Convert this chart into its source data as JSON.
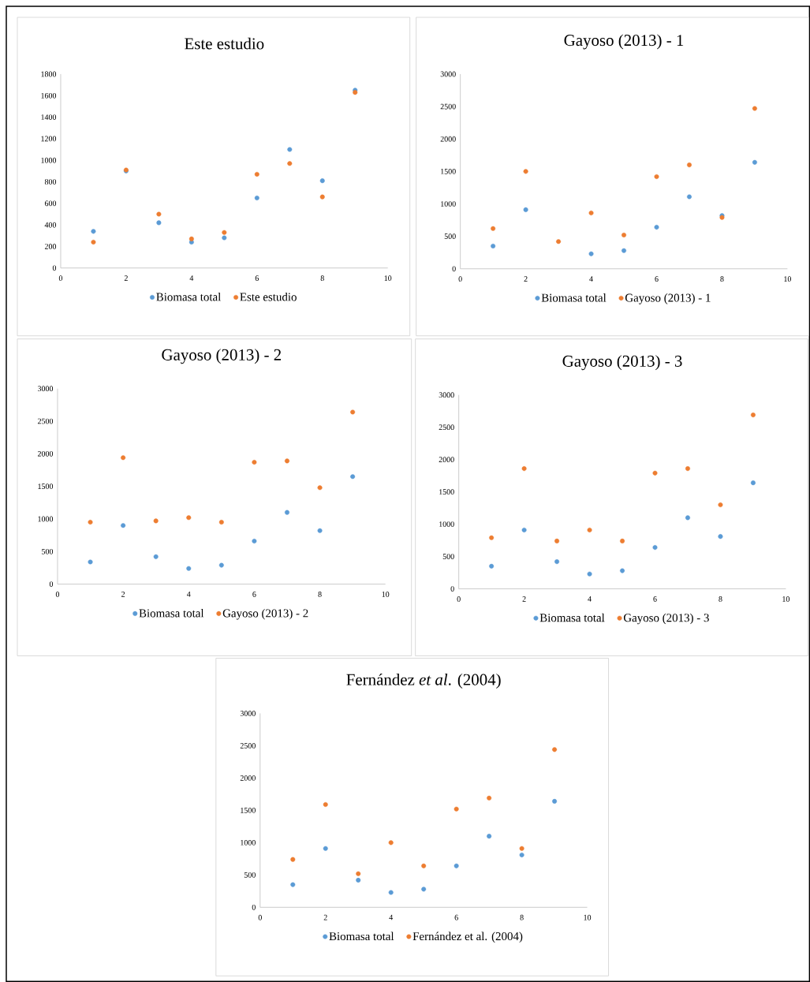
{
  "chart_data": [
    {
      "type": "scatter",
      "title": "Este estudio",
      "x": [
        1,
        2,
        3,
        4,
        5,
        6,
        7,
        8,
        9
      ],
      "xlim": [
        0,
        10
      ],
      "xticks": [
        0,
        2,
        4,
        6,
        8,
        10
      ],
      "ylim": [
        0,
        1800
      ],
      "yticks": [
        0,
        200,
        400,
        600,
        800,
        1000,
        1200,
        1400,
        1600,
        1800
      ],
      "legend": "bottom",
      "marker": "circle",
      "series": [
        {
          "name": "Biomasa total",
          "color": "#5b9bd5",
          "values": [
            340,
            900,
            420,
            240,
            280,
            650,
            1100,
            810,
            1650
          ]
        },
        {
          "name": "Este estudio",
          "color": "#ed7d31",
          "values": [
            240,
            910,
            500,
            270,
            330,
            870,
            970,
            660,
            1630
          ]
        }
      ]
    },
    {
      "type": "scatter",
      "title": "Gayoso (2013) - 1",
      "x": [
        1,
        2,
        3,
        4,
        5,
        6,
        7,
        8,
        9
      ],
      "xlim": [
        0,
        10
      ],
      "xticks": [
        0,
        2,
        4,
        6,
        8,
        10
      ],
      "ylim": [
        0,
        3000
      ],
      "yticks": [
        0,
        500,
        1000,
        1500,
        2000,
        2500,
        3000
      ],
      "legend": "bottom",
      "marker": "circle",
      "series": [
        {
          "name": "Biomasa total",
          "color": "#5b9bd5",
          "values": [
            350,
            910,
            null,
            230,
            280,
            640,
            1110,
            820,
            1640
          ]
        },
        {
          "name": "Gayoso (2013) - 1",
          "color": "#ed7d31",
          "values": [
            620,
            1500,
            420,
            860,
            520,
            1420,
            1600,
            790,
            2470
          ]
        }
      ]
    },
    {
      "type": "scatter",
      "title": "Gayoso (2013) - 2",
      "x": [
        1,
        2,
        3,
        4,
        5,
        6,
        7,
        8,
        9
      ],
      "xlim": [
        0,
        10
      ],
      "xticks": [
        0,
        2,
        4,
        6,
        8,
        10
      ],
      "ylim": [
        0,
        3000
      ],
      "yticks": [
        0,
        500,
        1000,
        1500,
        2000,
        2500,
        3000
      ],
      "legend": "bottom",
      "marker": "circle",
      "series": [
        {
          "name": "Biomasa total",
          "color": "#5b9bd5",
          "values": [
            340,
            900,
            420,
            240,
            290,
            660,
            1100,
            820,
            1650
          ]
        },
        {
          "name": "Gayoso (2013) - 2",
          "color": "#ed7d31",
          "values": [
            950,
            1940,
            970,
            1020,
            950,
            1870,
            1890,
            1480,
            2640
          ]
        }
      ]
    },
    {
      "type": "scatter",
      "title": "Gayoso (2013) - 3",
      "x": [
        1,
        2,
        3,
        4,
        5,
        6,
        7,
        8,
        9
      ],
      "xlim": [
        0,
        10
      ],
      "xticks": [
        0,
        2,
        4,
        6,
        8,
        10
      ],
      "ylim": [
        0,
        3000
      ],
      "yticks": [
        0,
        500,
        1000,
        1500,
        2000,
        2500,
        3000
      ],
      "legend": "bottom",
      "marker": "circle",
      "series": [
        {
          "name": "Biomasa total",
          "color": "#5b9bd5",
          "values": [
            350,
            910,
            420,
            230,
            280,
            640,
            1100,
            810,
            1640
          ]
        },
        {
          "name": "Gayoso (2013) - 3",
          "color": "#ed7d31",
          "values": [
            790,
            1860,
            740,
            910,
            740,
            1790,
            1860,
            1300,
            2690
          ]
        }
      ]
    },
    {
      "type": "scatter",
      "title": "Fernández *et al*. (2004)",
      "x": [
        1,
        2,
        3,
        4,
        5,
        6,
        7,
        8,
        9
      ],
      "xlim": [
        0,
        10
      ],
      "xticks": [
        0,
        2,
        4,
        6,
        8,
        10
      ],
      "ylim": [
        0,
        3000
      ],
      "yticks": [
        0,
        500,
        1000,
        1500,
        2000,
        2500,
        3000
      ],
      "legend": "bottom",
      "marker": "circle",
      "series": [
        {
          "name": "Biomasa total",
          "color": "#5b9bd5",
          "values": [
            350,
            910,
            420,
            230,
            280,
            640,
            1100,
            810,
            1640
          ]
        },
        {
          "name": "Fernández et al. (2004)",
          "color": "#ed7d31",
          "values": [
            740,
            1590,
            520,
            1000,
            640,
            1520,
            1690,
            910,
            2440
          ]
        }
      ]
    }
  ]
}
